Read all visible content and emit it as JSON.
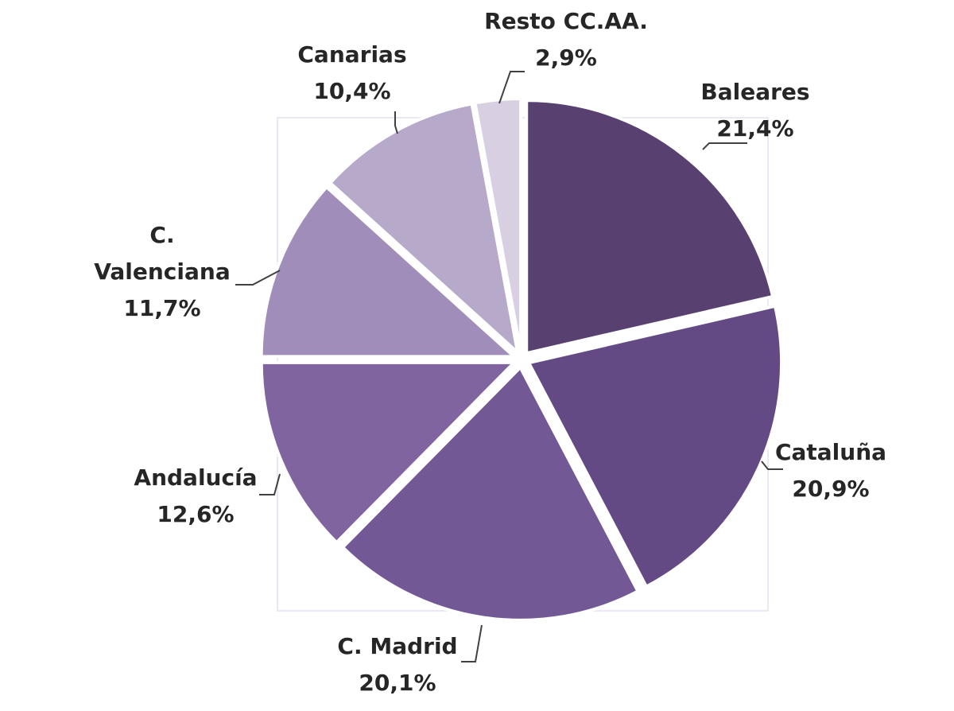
{
  "chart_data": {
    "type": "pie",
    "title": "",
    "unit": "%",
    "slices": [
      {
        "label": "Baleares",
        "label_lines": [
          "Baleares"
        ],
        "value": 21.4,
        "value_label": "21,4%",
        "color": "#584170"
      },
      {
        "label": "Cataluña",
        "label_lines": [
          "Cataluña"
        ],
        "value": 20.9,
        "value_label": "20,9%",
        "color": "#644A85"
      },
      {
        "label": "C. Madrid",
        "label_lines": [
          "C. Madrid"
        ],
        "value": 20.1,
        "value_label": "20,1%",
        "color": "#735896"
      },
      {
        "label": "Andalucía",
        "label_lines": [
          "Andalucía"
        ],
        "value": 12.6,
        "value_label": "12,6%",
        "color": "#7F64A0"
      },
      {
        "label": "C. Valenciana",
        "label_lines": [
          "C.",
          "Valenciana"
        ],
        "value": 11.7,
        "value_label": "11,7%",
        "color": "#A18DBA"
      },
      {
        "label": "Canarias",
        "label_lines": [
          "Canarias"
        ],
        "value": 10.4,
        "value_label": "10,4%",
        "color": "#B7A9C9"
      },
      {
        "label": "Resto CC.AA.",
        "label_lines": [
          "Resto CC.AA."
        ],
        "value": 2.9,
        "value_label": "2,9%",
        "color": "#D8CFE2"
      }
    ],
    "start_angle_deg": 0,
    "direction": "clockwise",
    "exploded": true,
    "legend": "none",
    "data_labels": "outside with leader lines"
  }
}
